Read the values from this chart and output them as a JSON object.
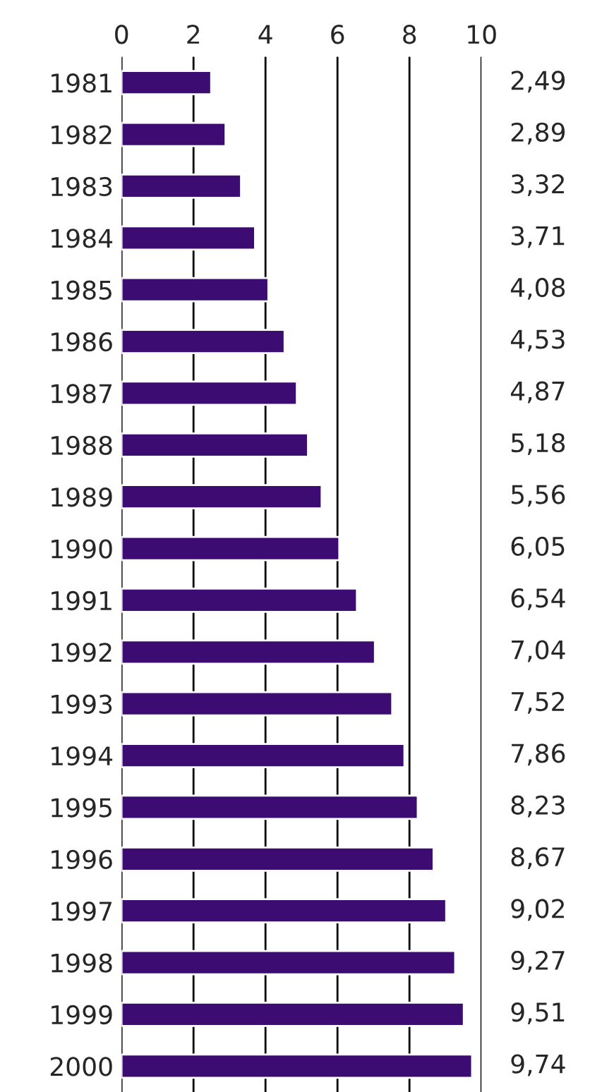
{
  "chart_data": {
    "type": "bar",
    "orientation": "horizontal",
    "categories": [
      "1981",
      "1982",
      "1983",
      "1984",
      "1985",
      "1986",
      "1987",
      "1988",
      "1989",
      "1990",
      "1991",
      "1992",
      "1993",
      "1994",
      "1995",
      "1996",
      "1997",
      "1998",
      "1999",
      "2000"
    ],
    "values": [
      2.49,
      2.89,
      3.32,
      3.71,
      4.08,
      4.53,
      4.87,
      5.18,
      5.56,
      6.05,
      6.54,
      7.04,
      7.52,
      7.86,
      8.23,
      8.67,
      9.02,
      9.27,
      9.51,
      9.74
    ],
    "value_labels": [
      "2,49",
      "2,89",
      "3,32",
      "3,71",
      "4,08",
      "4,53",
      "4,87",
      "5,18",
      "5,56",
      "6,05",
      "6,54",
      "7,04",
      "7,52",
      "7,86",
      "8,23",
      "8,67",
      "9,02",
      "9,27",
      "9,51",
      "9,74"
    ],
    "color": "#3d0c73",
    "xlim": [
      0,
      10
    ],
    "xticks": [
      0,
      2,
      4,
      6,
      8,
      10
    ],
    "grid": "x"
  }
}
